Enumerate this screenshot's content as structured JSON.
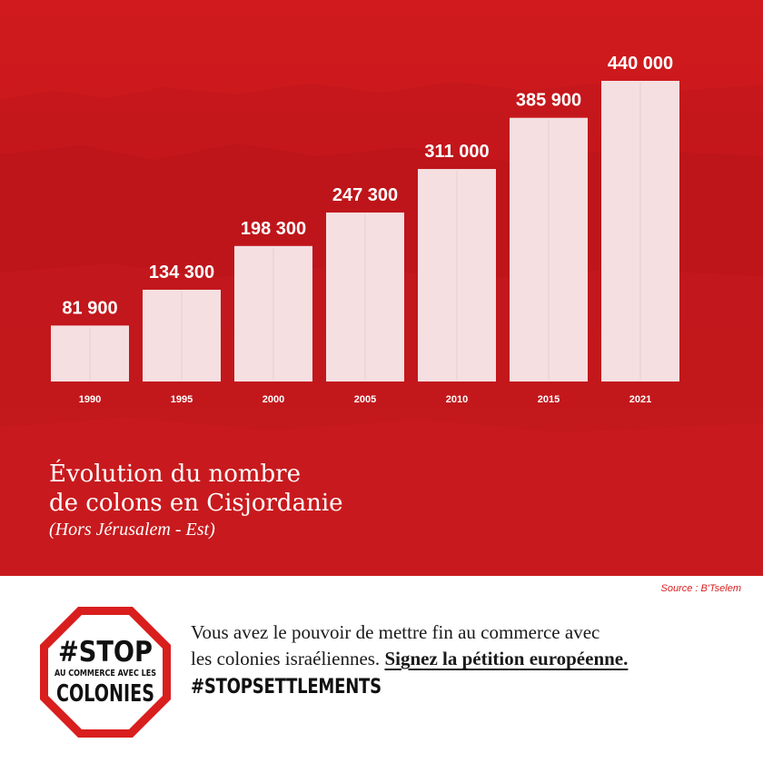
{
  "chart_data": {
    "type": "bar",
    "categories": [
      "1990",
      "1995",
      "2000",
      "2005",
      "2010",
      "2015",
      "2021"
    ],
    "values": [
      81900,
      134300,
      198300,
      247300,
      311000,
      385900,
      440000
    ],
    "value_labels": [
      "81 900",
      "134 300",
      "198 300",
      "247 300",
      "311 000",
      "385 900",
      "440 000"
    ],
    "title_line1": "Évolution du nombre",
    "title_line2": "de colons en Cisjordanie",
    "subtitle": "(Hors Jérusalem - Est)",
    "ylim": [
      0,
      440000
    ],
    "grid": false,
    "colors": {
      "background": "#d41f1f",
      "bar": "#f5dfe1",
      "text": "#ffffff"
    }
  },
  "source": "Source : B'Tselem",
  "message": {
    "line1": "Vous avez le pouvoir de mettre fin au commerce avec",
    "line2_start": "les colonies israéliennes.",
    "cta": "Signez la pétition européenne."
  },
  "hashtag": "#STOPSETTLEMENTS",
  "logo": {
    "line1": "#STOP",
    "line2": "AU COMMERCE AVEC LES",
    "line3": "COLONIES",
    "border_color": "#d91e1e"
  }
}
